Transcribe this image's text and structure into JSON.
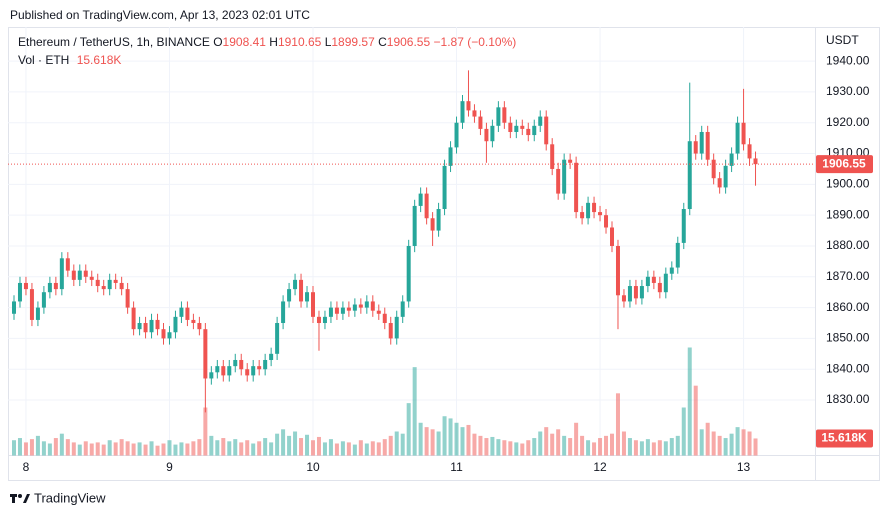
{
  "header": {
    "published": "Published on TradingView.com, Apr 13, 2023 02:01 UTC",
    "symbol": "Ethereum / TetherUS, 1h, BINANCE",
    "ohlc_prefixes": [
      "O",
      "H",
      "L",
      "C"
    ],
    "change": "−1.87",
    "change_pct": "(−0.10%)",
    "volume_title": "Vol · ETH",
    "brand": "TradingView"
  },
  "chart_data": {
    "type": "candlestick",
    "y_axis_title": "USDT",
    "categories": [
      null,
      null,
      "8",
      null,
      null,
      null,
      null,
      null,
      null,
      null,
      null,
      null,
      null,
      null,
      null,
      null,
      null,
      null,
      null,
      null,
      null,
      null,
      null,
      null,
      null,
      null,
      "9",
      null,
      null,
      null,
      null,
      null,
      null,
      null,
      null,
      null,
      null,
      null,
      null,
      null,
      null,
      null,
      null,
      null,
      null,
      null,
      null,
      null,
      null,
      null,
      "10",
      null,
      null,
      null,
      null,
      null,
      null,
      null,
      null,
      null,
      null,
      null,
      null,
      null,
      null,
      null,
      null,
      null,
      null,
      null,
      null,
      null,
      null,
      null,
      "11",
      null,
      null,
      null,
      null,
      null,
      null,
      null,
      null,
      null,
      null,
      null,
      null,
      null,
      null,
      null,
      null,
      null,
      null,
      null,
      null,
      null,
      null,
      null,
      "12",
      null,
      null,
      null,
      null,
      null,
      null,
      null,
      null,
      null,
      null,
      null,
      null,
      null,
      null,
      null,
      null,
      null,
      null,
      null,
      null,
      null,
      null,
      null,
      "13",
      null,
      null
    ],
    "open": [
      1858,
      1862,
      1868,
      1866,
      1856,
      1860,
      1865,
      1868,
      1866,
      1876,
      1872,
      1869,
      1872,
      1870,
      1869,
      1867,
      1866,
      1869,
      1868,
      1866,
      1860,
      1853,
      1855,
      1852,
      1856,
      1853,
      1850,
      1852,
      1857,
      1860,
      1856,
      1855,
      1853,
      1837,
      1839,
      1841,
      1838,
      1841,
      1843,
      1840,
      1838,
      1841,
      1840,
      1843,
      1845,
      1855,
      1862,
      1866,
      1869,
      1862,
      1865,
      1857,
      1855,
      1857,
      1860,
      1858,
      1860,
      1859,
      1861,
      1860,
      1862,
      1859,
      1858,
      1855,
      1850,
      1857,
      1862,
      1880,
      1893,
      1897,
      1889,
      1885,
      1892,
      1906,
      1912,
      1920,
      1927,
      1924,
      1922,
      1918,
      1914,
      1919,
      1925,
      1920,
      1917,
      1919,
      1918,
      1916,
      1919,
      1922,
      1913,
      1905,
      1897,
      1908,
      1907,
      1891,
      1889,
      1894,
      1891,
      1890,
      1886,
      1880,
      1864,
      1862,
      1867,
      1863,
      1867,
      1870,
      1868,
      1865,
      1871,
      1873,
      1881,
      1892,
      1914,
      1910,
      1917,
      1908,
      1902,
      1899,
      1906,
      1910,
      1920,
      1913,
      1908.41
    ],
    "high": [
      1864,
      1870,
      1870,
      1868,
      1862,
      1867,
      1870,
      1870,
      1878,
      1878,
      1874,
      1874,
      1874,
      1872,
      1871,
      1869,
      1871,
      1871,
      1870,
      1868,
      1862,
      1857,
      1857,
      1858,
      1858,
      1855,
      1854,
      1859,
      1862,
      1862,
      1858,
      1857,
      1855,
      1841,
      1843,
      1843,
      1843,
      1845,
      1845,
      1842,
      1843,
      1843,
      1845,
      1847,
      1857,
      1864,
      1868,
      1871,
      1871,
      1867,
      1867,
      1859,
      1859,
      1862,
      1862,
      1862,
      1862,
      1863,
      1863,
      1864,
      1864,
      1861,
      1860,
      1857,
      1859,
      1864,
      1882,
      1895,
      1899,
      1899,
      1891,
      1894,
      1908,
      1914,
      1922,
      1929,
      1937,
      1926,
      1924,
      1920,
      1921,
      1927,
      1927,
      1922,
      1921,
      1921,
      1920,
      1921,
      1924,
      1924,
      1915,
      1907,
      1910,
      1910,
      1909,
      1893,
      1896,
      1896,
      1893,
      1892,
      1888,
      1882,
      1866,
      1869,
      1869,
      1869,
      1872,
      1872,
      1870,
      1873,
      1875,
      1883,
      1894,
      1933,
      1916,
      1919,
      1919,
      1910,
      1904,
      1908,
      1912,
      1922,
      1931,
      1915,
      1910.65
    ],
    "low": [
      1856,
      1860,
      1864,
      1854,
      1854,
      1858,
      1863,
      1864,
      1864,
      1870,
      1867,
      1867,
      1868,
      1867,
      1865,
      1864,
      1864,
      1866,
      1864,
      1858,
      1851,
      1851,
      1850,
      1850,
      1851,
      1848,
      1848,
      1850,
      1855,
      1854,
      1853,
      1851,
      1826,
      1835,
      1837,
      1836,
      1836,
      1839,
      1838,
      1836,
      1836,
      1838,
      1838,
      1841,
      1843,
      1853,
      1860,
      1864,
      1860,
      1860,
      1855,
      1846,
      1853,
      1855,
      1856,
      1856,
      1857,
      1857,
      1858,
      1858,
      1857,
      1856,
      1853,
      1848,
      1848,
      1855,
      1860,
      1878,
      1891,
      1887,
      1880,
      1883,
      1890,
      1904,
      1910,
      1918,
      1922,
      1920,
      1916,
      1907,
      1912,
      1917,
      1918,
      1915,
      1915,
      1916,
      1914,
      1914,
      1917,
      1911,
      1903,
      1895,
      1895,
      1905,
      1889,
      1887,
      1887,
      1889,
      1888,
      1884,
      1878,
      1853,
      1860,
      1860,
      1861,
      1861,
      1865,
      1866,
      1863,
      1863,
      1869,
      1871,
      1879,
      1890,
      1908,
      1908,
      1906,
      1900,
      1897,
      1897,
      1904,
      1908,
      1911,
      1906,
      1899.57
    ],
    "close": [
      1862,
      1868,
      1866,
      1856,
      1860,
      1865,
      1868,
      1866,
      1876,
      1872,
      1869,
      1872,
      1870,
      1869,
      1867,
      1866,
      1869,
      1868,
      1866,
      1860,
      1853,
      1855,
      1852,
      1856,
      1853,
      1850,
      1852,
      1857,
      1860,
      1856,
      1855,
      1853,
      1837,
      1839,
      1841,
      1838,
      1841,
      1843,
      1840,
      1838,
      1841,
      1840,
      1843,
      1845,
      1855,
      1862,
      1866,
      1869,
      1862,
      1865,
      1857,
      1855,
      1857,
      1860,
      1858,
      1860,
      1859,
      1861,
      1860,
      1862,
      1859,
      1858,
      1855,
      1850,
      1857,
      1862,
      1880,
      1893,
      1897,
      1889,
      1885,
      1892,
      1906,
      1912,
      1920,
      1927,
      1924,
      1922,
      1918,
      1914,
      1919,
      1925,
      1920,
      1917,
      1919,
      1918,
      1916,
      1919,
      1922,
      1913,
      1905,
      1897,
      1908,
      1907,
      1891,
      1889,
      1894,
      1891,
      1890,
      1886,
      1880,
      1864,
      1862,
      1867,
      1863,
      1867,
      1870,
      1868,
      1865,
      1871,
      1873,
      1881,
      1892,
      1914,
      1910,
      1917,
      1908,
      1902,
      1899,
      1906,
      1910,
      1920,
      1913,
      1908.41,
      1906.55
    ],
    "volume": {
      "values": [
        14000,
        16000,
        12000,
        15000,
        18000,
        13000,
        11000,
        16000,
        20000,
        15000,
        12000,
        10000,
        13000,
        11000,
        12000,
        10000,
        14000,
        12000,
        15000,
        13000,
        11000,
        12000,
        10000,
        13000,
        9000,
        11000,
        14000,
        10000,
        12000,
        11000,
        13000,
        15000,
        44000,
        18000,
        14000,
        16000,
        13000,
        15000,
        12000,
        14000,
        11000,
        13000,
        16000,
        12000,
        20000,
        24000,
        18000,
        22000,
        16000,
        19000,
        14000,
        17000,
        12000,
        15000,
        11000,
        13000,
        12000,
        10000,
        14000,
        11000,
        13000,
        12000,
        15000,
        18000,
        22000,
        20000,
        48000,
        81000,
        30000,
        26000,
        24000,
        22000,
        36000,
        34000,
        30000,
        26000,
        28000,
        20000,
        18000,
        16000,
        17000,
        15000,
        14000,
        13000,
        12000,
        11000,
        14000,
        16000,
        22000,
        26000,
        20000,
        24000,
        18000,
        16000,
        30000,
        18000,
        14000,
        12000,
        16000,
        18000,
        20000,
        57000,
        22000,
        16000,
        14000,
        13000,
        15000,
        12000,
        14000,
        13000,
        16000,
        18000,
        44000,
        99000,
        64000,
        24000,
        30000,
        22000,
        18000,
        16000,
        20000,
        26000,
        24000,
        22000,
        15618
      ],
      "value_labels": [
        null,
        null,
        null,
        null,
        null,
        null,
        null,
        null,
        null,
        null,
        null,
        null,
        null,
        null,
        null,
        null,
        null,
        null,
        null,
        null,
        null,
        null,
        null,
        null,
        null,
        null,
        null,
        null,
        null,
        null,
        null,
        null,
        null,
        null,
        null,
        null,
        null,
        null,
        null,
        null,
        null,
        null,
        null,
        null,
        null,
        null,
        null,
        null,
        null,
        null,
        null,
        null,
        null,
        null,
        null,
        null,
        null,
        null,
        null,
        null,
        null,
        null,
        null,
        null,
        null,
        null,
        null,
        null,
        null,
        null,
        null,
        null,
        null,
        null,
        null,
        null,
        null,
        null,
        null,
        null,
        null,
        null,
        null,
        null,
        null,
        null,
        null,
        null,
        null,
        null,
        null,
        null,
        null,
        null,
        null,
        null,
        null,
        null,
        null,
        null,
        null,
        null,
        null,
        null,
        null,
        null,
        null,
        null,
        null,
        null,
        null,
        null,
        null,
        null,
        null,
        null,
        null,
        null,
        null,
        null,
        null,
        null,
        null,
        null,
        "15.618K"
      ]
    },
    "up_color": "#26a69a",
    "down_color": "#ef5350",
    "ylim": [
      1812,
      1950
    ],
    "yticks": [
      {
        "value": 1830,
        "label": "1830.00"
      },
      {
        "value": 1840,
        "label": "1840.00"
      },
      {
        "value": 1850,
        "label": "1850.00"
      },
      {
        "value": 1860,
        "label": "1860.00"
      },
      {
        "value": 1870,
        "label": "1870.00"
      },
      {
        "value": 1880,
        "label": "1880.00"
      },
      {
        "value": 1890,
        "label": "1890.00"
      },
      {
        "value": 1900,
        "label": "1900.00"
      },
      {
        "value": 1910,
        "label": "1910.00"
      },
      {
        "value": 1920,
        "label": "1920.00"
      },
      {
        "value": 1930,
        "label": "1930.00"
      },
      {
        "value": 1940,
        "label": "1940.00"
      }
    ],
    "grid": true
  }
}
